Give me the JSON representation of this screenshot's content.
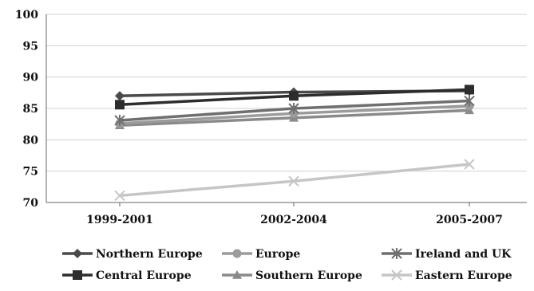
{
  "chart_data": {
    "type": "line",
    "title": "",
    "xlabel": "",
    "ylabel": "",
    "ylim": [
      70,
      100
    ],
    "y_ticks": [
      70,
      75,
      80,
      85,
      90,
      95,
      100
    ],
    "grid": true,
    "legend_position": "bottom",
    "categories": [
      "1999-2001",
      "2002-2004",
      "2005-2007"
    ],
    "series": [
      {
        "name": "Northern Europe",
        "values": [
          87.0,
          87.6,
          87.8
        ],
        "color": "#4a4a4a",
        "marker": "diamond"
      },
      {
        "name": "Europe",
        "values": [
          82.6,
          84.2,
          85.4
        ],
        "color": "#9b9b9b",
        "marker": "circle"
      },
      {
        "name": "Ireland and UK",
        "values": [
          83.1,
          85.0,
          86.2
        ],
        "color": "#6f6f6f",
        "marker": "star"
      },
      {
        "name": "Central Europe",
        "values": [
          85.6,
          87.0,
          88.0
        ],
        "color": "#2d2d2d",
        "marker": "square"
      },
      {
        "name": "Southern Europe",
        "values": [
          82.3,
          83.5,
          84.7
        ],
        "color": "#8a8a8a",
        "marker": "triangle"
      },
      {
        "name": "Eastern Europe",
        "values": [
          71.1,
          73.4,
          76.1
        ],
        "color": "#c6c6c6",
        "marker": "x"
      }
    ]
  }
}
